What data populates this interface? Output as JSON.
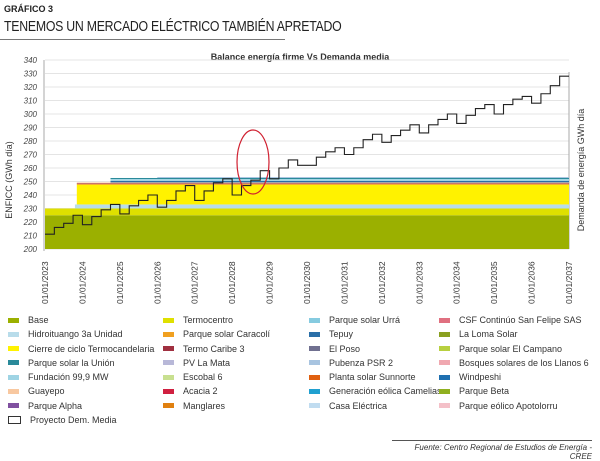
{
  "header": {
    "kicker": "GRÁFICO 3",
    "title": "TENEMOS UN MERCADO ELÉCTRICO TAMBIÉN APRETADO"
  },
  "source": "Fuente: Centro Regional de Estudios de Energía - CREE",
  "chart_data": {
    "type": "area",
    "title": "Balance energía firme Vs Demanda media",
    "ylabel": "ENFICC (GWh día)",
    "y2label": "Demanda de energía GWh día",
    "ylim": [
      200,
      340
    ],
    "yticks": [
      200,
      210,
      220,
      230,
      240,
      250,
      260,
      270,
      280,
      290,
      300,
      310,
      320,
      330,
      340
    ],
    "xlim": [
      2023,
      2037
    ],
    "xticks": [
      "01/01/2023",
      "01/01/2024",
      "01/01/2025",
      "01/01/2026",
      "01/01/2027",
      "01/01/2028",
      "01/01/2029",
      "01/01/2030",
      "01/01/2031",
      "01/01/2032",
      "01/01/2033",
      "01/01/2034",
      "01/01/2035",
      "01/01/2036",
      "01/01/2037"
    ],
    "grid": true,
    "legend_position": "bottom",
    "bands": [
      {
        "name": "Base",
        "color": "#9bb000",
        "start": 2023,
        "low": 200,
        "high": 225
      },
      {
        "name": "Termocentro",
        "color": "#dfe000",
        "start": 2023,
        "low": 225,
        "high": 230
      },
      {
        "name": "Hidroituango 3a Unidad",
        "color": "#b8dcea",
        "start": 2023.8,
        "low": 230,
        "high": 233
      },
      {
        "name": "Cierre de ciclo Termocandelaria",
        "color": "#fff200",
        "start": 2023.85,
        "low": 233,
        "high": 247.5
      },
      {
        "name": "Parque solar Caracolí",
        "color": "#f0a020",
        "start": 2023.85,
        "low": 247.5,
        "high": 248.3
      },
      {
        "name": "Termo Caribe 3",
        "color": "#a03040",
        "start": 2023.85,
        "low": 248.3,
        "high": 248.8
      },
      {
        "name": "Tepuy",
        "color": "#2a6fa8",
        "start": 2024.75,
        "low": 249.3,
        "high": 250.5
      },
      {
        "name": "Parque solar la Unión",
        "color": "#2a8a9a",
        "start": 2024.75,
        "low": 251.8,
        "high": 252.6
      },
      {
        "name": "Fundación 99,9 MW",
        "color": "#9fd4e4",
        "start": 2024.75,
        "low": 250.5,
        "high": 251.8
      },
      {
        "name": "Guayepo",
        "color": "#f8c8a0",
        "start": 2023.85,
        "low": 248.8,
        "high": 249.3
      },
      {
        "name": "Pubenza PSR 2",
        "color": "#a8c4e0",
        "start": 2026.0,
        "low": 252.6,
        "high": 253.3
      }
    ],
    "series": [
      {
        "name": "Proyecto Dem. Media",
        "x_start": 2023,
        "step": "quarter",
        "values": [
          211,
          216,
          219,
          225,
          218,
          224,
          229,
          233,
          226,
          232,
          236,
          240,
          231,
          236,
          243,
          247,
          236,
          243,
          249,
          252,
          240,
          247,
          251,
          258,
          252,
          260,
          266,
          262,
          262,
          268,
          272,
          275,
          270,
          275,
          281,
          285,
          279,
          284,
          288,
          292,
          286,
          292,
          296,
          300,
          293,
          299,
          304,
          307,
          300,
          307,
          311,
          313,
          308,
          315,
          321,
          328
        ]
      }
    ]
  },
  "legend": [
    {
      "label": "Base",
      "color": "#9bb000"
    },
    {
      "label": "Termocentro",
      "color": "#dfe000"
    },
    {
      "label": "Parque solar Urrá",
      "color": "#86cbe0"
    },
    {
      "label": "CSF Continúo San Felipe SAS",
      "color": "#e07080"
    },
    {
      "label": "Hidroituango 3a Unidad",
      "color": "#b8dcea"
    },
    {
      "label": "Parque solar Caracolí",
      "color": "#f0a020"
    },
    {
      "label": "Tepuy",
      "color": "#2a6fa8"
    },
    {
      "label": "La Loma Solar",
      "color": "#8aa020"
    },
    {
      "label": "Cierre de ciclo Termocandelaria",
      "color": "#fff200"
    },
    {
      "label": "Termo Caribe 3",
      "color": "#a03040"
    },
    {
      "label": "El Poso",
      "color": "#707090"
    },
    {
      "label": "Parque solar El Campano",
      "color": "#b8d040"
    },
    {
      "label": "Parque solar la Unión",
      "color": "#2a8a9a"
    },
    {
      "label": "PV La Mata",
      "color": "#b8b8d8"
    },
    {
      "label": "Pubenza PSR 2",
      "color": "#a8c4e0"
    },
    {
      "label": "Bosques solares de los Llanos 6",
      "color": "#f0a8b0"
    },
    {
      "label": "Fundación  99,9 MW",
      "color": "#9fd4e4"
    },
    {
      "label": "Escobal 6",
      "color": "#c8e090"
    },
    {
      "label": "Planta solar Sunnorte",
      "color": "#e06010"
    },
    {
      "label": "Windpeshi",
      "color": "#1f70b0"
    },
    {
      "label": "Guayepo",
      "color": "#f8c8a0"
    },
    {
      "label": "Acacia 2",
      "color": "#d02040"
    },
    {
      "label": "Generación eólica Camelias",
      "color": "#20a0d0"
    },
    {
      "label": "Parque Beta",
      "color": "#90b020"
    },
    {
      "label": "Parque Alpha",
      "color": "#8050a0"
    },
    {
      "label": "Manglares",
      "color": "#e08010"
    },
    {
      "label": "Casa Eléctrica",
      "color": "#c0dcf0"
    },
    {
      "label": "Parque eólico Apotolorru",
      "color": "#f4c0c8"
    },
    {
      "label": "Proyecto Dem. Media",
      "color": "outline"
    }
  ]
}
